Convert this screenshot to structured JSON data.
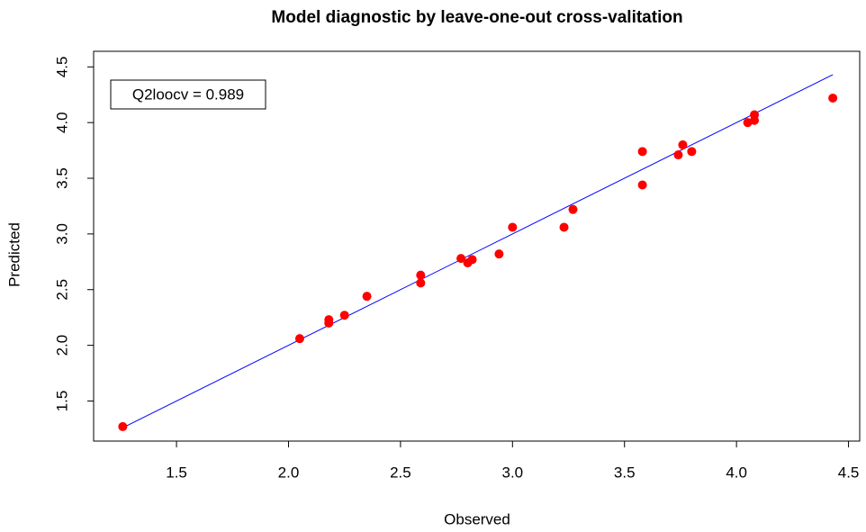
{
  "chart_data": {
    "type": "scatter",
    "title": "Model diagnostic by leave-one-out cross-valitation",
    "x_label": "Observed",
    "y_label": "Predicted",
    "annotation": "Q2loocv = 0.989",
    "x": [
      1.26,
      2.05,
      2.18,
      2.18,
      2.25,
      2.35,
      2.59,
      2.59,
      2.77,
      2.8,
      2.82,
      2.94,
      3.0,
      3.23,
      3.27,
      3.58,
      3.58,
      3.74,
      3.76,
      3.8,
      4.05,
      4.08,
      4.08,
      4.43
    ],
    "values": [
      1.27,
      2.06,
      2.23,
      2.2,
      2.27,
      2.44,
      2.63,
      2.56,
      2.78,
      2.74,
      2.77,
      2.82,
      3.06,
      3.06,
      3.22,
      3.74,
      3.44,
      3.71,
      3.8,
      3.74,
      4.0,
      4.07,
      4.02,
      4.22
    ],
    "color": "#ff0000",
    "reference_line": {
      "x": [
        1.26,
        4.43
      ],
      "y": [
        1.26,
        4.43
      ],
      "color": "#0000ff"
    },
    "xlim": [
      1.13,
      4.55
    ],
    "ylim": [
      1.14,
      4.64
    ],
    "xticks": [
      1.5,
      {
        "value": 2,
        "label": "2.0"
      },
      2.5,
      {
        "value": 3,
        "label": "3.0"
      },
      3.5,
      {
        "value": 4,
        "label": "4.0"
      },
      4.5
    ],
    "yticks": [
      1.5,
      {
        "value": 2,
        "label": "2.0"
      },
      2.5,
      {
        "value": 3,
        "label": "3.0"
      },
      3.5,
      {
        "value": 4,
        "label": "4.0"
      },
      4.5
    ]
  }
}
